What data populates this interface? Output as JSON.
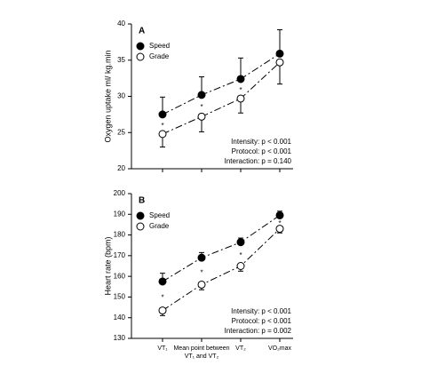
{
  "chart_data": [
    {
      "type": "line",
      "title": "A",
      "y_label": "Oxygen uptake  ml/ kg.min",
      "ylim": [
        20,
        40
      ],
      "yticks": [
        20,
        25,
        30,
        35,
        40
      ],
      "legend": "upper left",
      "series": [
        {
          "name": "Speed",
          "color": "#000000",
          "marker": "filled",
          "error_direction": "up",
          "values": [
            27.5,
            30.2,
            32.4,
            35.9
          ],
          "errors": [
            2.4,
            2.5,
            2.9,
            3.3
          ]
        },
        {
          "name": "Grade",
          "color": "#000000",
          "marker": "open",
          "error_direction": "down",
          "values": [
            24.8,
            27.2,
            29.7,
            34.7
          ],
          "errors": [
            1.8,
            2.1,
            2.0,
            3.0
          ]
        }
      ],
      "significance": [
        "*",
        "*",
        "*",
        null
      ],
      "annotations": [
        "Intensity: p < 0.001",
        "Protocol: p < 0.001",
        "Interaction: p = 0.140"
      ]
    },
    {
      "type": "line",
      "title": "B",
      "y_label": "Heart rate (bpm)",
      "categories": [
        "VT₁",
        "Mean point between VT₁ and VT₂",
        "VT₂",
        "VO₂max"
      ],
      "ylim": [
        130,
        200
      ],
      "yticks": [
        130,
        140,
        150,
        160,
        170,
        180,
        190,
        200
      ],
      "legend": "upper left",
      "series": [
        {
          "name": "Speed",
          "color": "#000000",
          "marker": "filled",
          "error_direction": "up",
          "values": [
            157.5,
            169,
            176.5,
            189.5
          ],
          "errors": [
            4,
            2.5,
            2,
            2
          ]
        },
        {
          "name": "Grade",
          "color": "#000000",
          "marker": "open",
          "error_direction": "down",
          "values": [
            143.5,
            156,
            165,
            183
          ],
          "errors": [
            2.5,
            2.5,
            2.5,
            2
          ]
        }
      ],
      "significance": [
        "*",
        "*",
        "*",
        "*"
      ],
      "annotations": [
        "Intensity: p < 0.001",
        "Protocol: p < 0.001",
        "Interaction: p = 0.002"
      ]
    }
  ]
}
